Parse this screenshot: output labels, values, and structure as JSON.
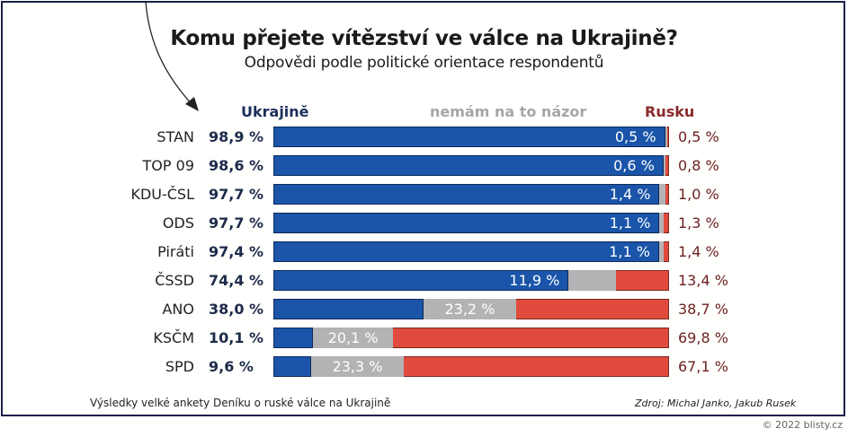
{
  "chart_data": {
    "type": "bar",
    "orientation": "horizontal",
    "stacked": true,
    "title": "Komu přejete vítězství ve válce na Ukrajině?",
    "subtitle": "Odpovědi podle politické orientace respondentů",
    "categories": [
      "STAN",
      "TOP 09",
      "KDU-ČSL",
      "ODS",
      "Piráti",
      "ČSSD",
      "ANO",
      "KSČM",
      "SPD"
    ],
    "series": [
      {
        "name": "Ukrajině",
        "color": "#1a55a9",
        "values": [
          98.9,
          98.6,
          97.7,
          97.7,
          97.4,
          74.4,
          38.0,
          10.1,
          9.6
        ],
        "labels": [
          "98,9 %",
          "98,6 %",
          "97,7 %",
          "97,7 %",
          "97,4 %",
          "74,4 %",
          "38,0 %",
          "10,1 %",
          "9,6 %"
        ]
      },
      {
        "name": "nemám na to názor",
        "color": "#b3b3b5",
        "values": [
          0.5,
          0.6,
          1.4,
          1.1,
          1.1,
          11.9,
          23.2,
          20.1,
          23.3
        ],
        "labels": [
          "0,5 %",
          "0,6 %",
          "1,4 %",
          "1,1 %",
          "1,1 %",
          "11,9 %",
          "23,2 %",
          "20,1 %",
          "23,3 %"
        ]
      },
      {
        "name": "Rusku",
        "color": "#e04b3d",
        "values": [
          0.5,
          0.8,
          1.0,
          1.3,
          1.4,
          13.4,
          38.7,
          69.8,
          67.1
        ],
        "labels": [
          "0,5 %",
          "0,8 %",
          "1,0 %",
          "1,3 %",
          "1,4 %",
          "13,4 %",
          "38,7 %",
          "69,8 %",
          "67,1 %"
        ]
      }
    ],
    "xlim": [
      0,
      100
    ],
    "grid": false,
    "legend": "top (column headers)"
  },
  "header": {
    "title": "Komu přejete vítězství ve válce na Ukrajině?",
    "subtitle": "Odpovědi podle politické orientace respondentů",
    "col_ukraine": "Ukrajině",
    "col_none": "nemám na to názor",
    "col_russia": "Rusku"
  },
  "footer": {
    "note": "Výsledky velké ankety Deníku o ruské válce na Ukrajině",
    "source": "Zdroj: Michal Janko, Jakub Rusek",
    "copyright": "© 2022 blisty.cz"
  }
}
